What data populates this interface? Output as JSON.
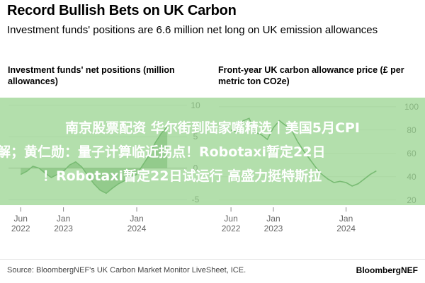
{
  "header": {
    "title": "Record Bullish Bets on UK Carbon",
    "subtitle": "Investment funds' positions are 6.6 million net long on UK emission allowances"
  },
  "chart_data": [
    {
      "type": "area",
      "title": "Investment funds' net positions (million allowances)",
      "x_ticks": [
        "Jun\n2022",
        "Jan\n2023",
        "Jan\n2024"
      ],
      "y_ticks": [
        "10",
        "5",
        "0",
        "-5"
      ],
      "ylim": [
        -6,
        12
      ],
      "grid": true,
      "color": "#2e7d32",
      "series": [
        {
          "values": [
            [
              "2022-06",
              -1.0
            ],
            [
              "2022-07",
              -0.5
            ],
            [
              "2022-08",
              0.3
            ],
            [
              "2022-09",
              0.0
            ],
            [
              "2022-10",
              -0.8
            ],
            [
              "2022-11",
              -1.5
            ],
            [
              "2022-12",
              -1.0
            ],
            [
              "2023-01",
              -0.5
            ],
            [
              "2023-02",
              0.5
            ],
            [
              "2023-03",
              1.0
            ],
            [
              "2023-04",
              0.2
            ],
            [
              "2023-05",
              -1.2
            ],
            [
              "2023-06",
              -2.5
            ],
            [
              "2023-07",
              -3.5
            ],
            [
              "2023-08",
              -4.0
            ],
            [
              "2023-09",
              -3.2
            ],
            [
              "2023-10",
              -2.5
            ],
            [
              "2023-11",
              -2.0
            ],
            [
              "2023-12",
              -1.5
            ],
            [
              "2024-01",
              -1.0
            ],
            [
              "2024-02",
              0.5
            ],
            [
              "2024-03",
              2.0
            ],
            [
              "2024-04",
              4.0
            ],
            [
              "2024-05",
              5.5
            ],
            [
              "2024-06",
              6.6
            ]
          ]
        }
      ]
    },
    {
      "type": "line",
      "title": "Front-year UK carbon allowance price (£ per metric ton CO2e)",
      "x_ticks": [
        "Jun\n2022",
        "Jan\n2023",
        "Jan\n2024"
      ],
      "y_ticks": [
        "100",
        "80",
        "60",
        "40",
        "20"
      ],
      "ylim": [
        15,
        112
      ],
      "grid": true,
      "color": "#2e7d32",
      "series": [
        {
          "values": [
            [
              "2022-06",
              80
            ],
            [
              "2022-07",
              78
            ],
            [
              "2022-08",
              88
            ],
            [
              "2022-09",
              90
            ],
            [
              "2022-10",
              78
            ],
            [
              "2022-11",
              76
            ],
            [
              "2022-12",
              72
            ],
            [
              "2023-01",
              82
            ],
            [
              "2023-02",
              88
            ],
            [
              "2023-03",
              84
            ],
            [
              "2023-04",
              80
            ],
            [
              "2023-05",
              70
            ],
            [
              "2023-06",
              62
            ],
            [
              "2023-07",
              55
            ],
            [
              "2023-08",
              48
            ],
            [
              "2023-09",
              42
            ],
            [
              "2023-10",
              38
            ],
            [
              "2023-11",
              35
            ],
            [
              "2023-12",
              36
            ],
            [
              "2024-01",
              35
            ],
            [
              "2024-02",
              32
            ],
            [
              "2024-03",
              34
            ],
            [
              "2024-04",
              38
            ],
            [
              "2024-05",
              42
            ],
            [
              "2024-06",
              45
            ]
          ]
        }
      ]
    }
  ],
  "overlay": {
    "line1": "南京股票配资 华尔街到陆家嘴精选丨美国5月CPI",
    "line2": "解；黄仁勋：量子计算临近拐点！Robotaxi暂定22日",
    "line3": "！Robotaxi暂定22日试运行 高盛力挺特斯拉"
  },
  "footer": {
    "source": "Source: BloombergNEF's UK Carbon Market Monitor LiveSheet, ICE.",
    "brand": "BloombergNEF"
  }
}
